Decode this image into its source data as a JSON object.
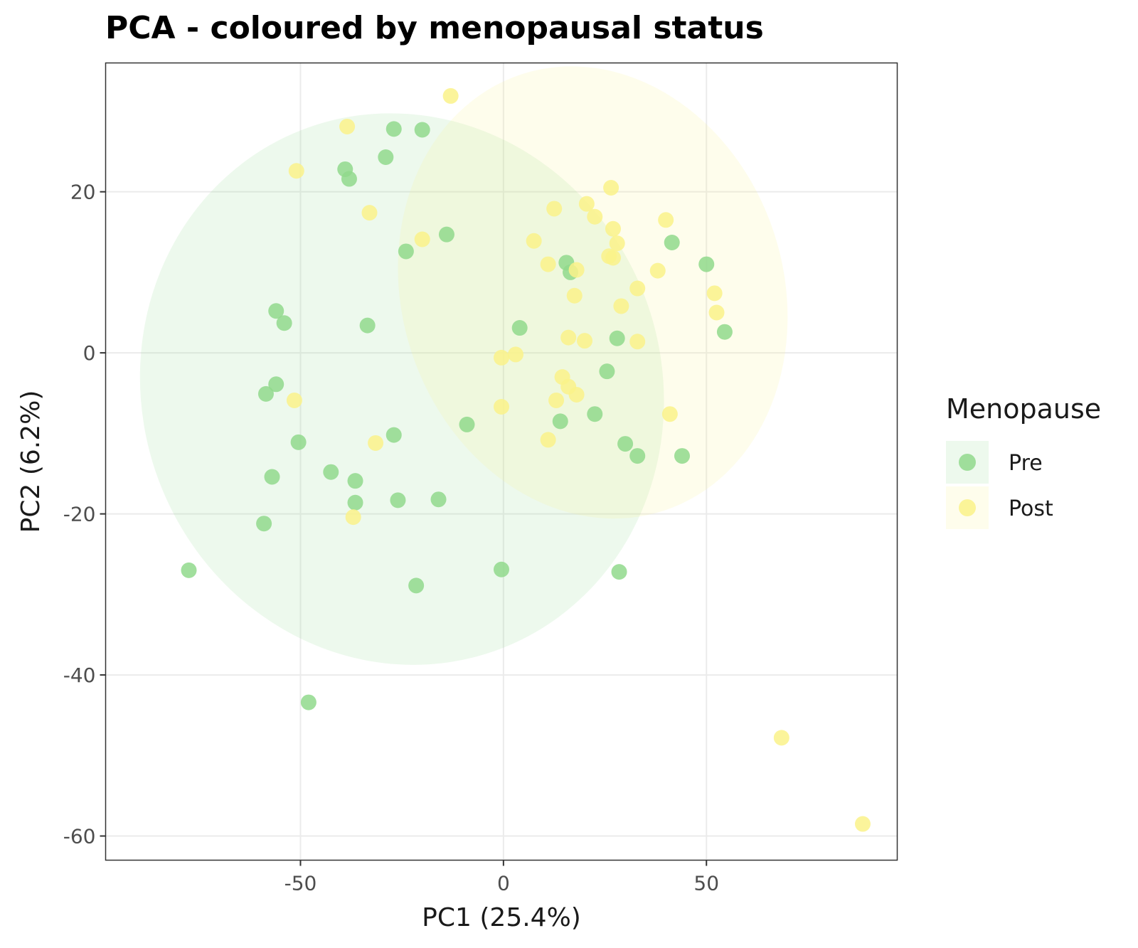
{
  "chart_data": {
    "type": "scatter",
    "title": "PCA - coloured by menopausal status",
    "xlabel": "PC1 (25.4%)",
    "ylabel": "PC2 (6.2%)",
    "xlim": [
      -98,
      97
    ],
    "ylim": [
      -63,
      36
    ],
    "x_ticks": [
      -50,
      0,
      50
    ],
    "x_tick_labels": [
      "-50",
      "0",
      "50"
    ],
    "y_ticks": [
      -60,
      -40,
      -20,
      0,
      20
    ],
    "y_tick_labels": [
      "-60",
      "-40",
      "-20",
      "0",
      "20"
    ],
    "grid": true,
    "legend": {
      "title": "Menopause",
      "position": "right"
    },
    "ellipses": [
      {
        "series": "Pre",
        "cx": -25,
        "cy": -4.5,
        "rx": 64,
        "ry": 34.5,
        "angle_deg": 20
      },
      {
        "series": "Post",
        "cx": 22,
        "cy": 7.5,
        "rx": 47,
        "ry": 28.5,
        "angle_deg": 18
      }
    ],
    "series": [
      {
        "name": "Pre",
        "color": "#90d98c",
        "points": [
          [
            -27,
            27.8
          ],
          [
            -20,
            27.7
          ],
          [
            -39,
            22.8
          ],
          [
            -38,
            21.6
          ],
          [
            -29,
            24.3
          ],
          [
            -14,
            14.7
          ],
          [
            -24,
            12.6
          ],
          [
            -56,
            5.2
          ],
          [
            -54,
            3.7
          ],
          [
            -33.5,
            3.4
          ],
          [
            -56,
            -3.9
          ],
          [
            -58.5,
            -5.1
          ],
          [
            -50.5,
            -11.1
          ],
          [
            -27,
            -10.2
          ],
          [
            -9,
            -8.9
          ],
          [
            -42.5,
            -14.8
          ],
          [
            -36.5,
            -15.9
          ],
          [
            -57,
            -15.4
          ],
          [
            -36.5,
            -18.6
          ],
          [
            -26,
            -18.3
          ],
          [
            -16,
            -18.2
          ],
          [
            -59,
            -21.2
          ],
          [
            -77.5,
            -27
          ],
          [
            -21.5,
            -28.9
          ],
          [
            -0.5,
            -26.9
          ],
          [
            -48,
            -43.4
          ],
          [
            4,
            3.1
          ],
          [
            15.5,
            11.2
          ],
          [
            16.5,
            10
          ],
          [
            28,
            1.8
          ],
          [
            25.5,
            -2.3
          ],
          [
            14,
            -8.5
          ],
          [
            22.5,
            -7.6
          ],
          [
            30,
            -11.3
          ],
          [
            33,
            -12.8
          ],
          [
            44,
            -12.8
          ],
          [
            41.5,
            13.7
          ],
          [
            50,
            11
          ],
          [
            54.5,
            2.6
          ],
          [
            28.5,
            -27.2
          ]
        ]
      },
      {
        "name": "Post",
        "color": "#faf28a",
        "points": [
          [
            -13,
            31.9
          ],
          [
            -38.5,
            28.1
          ],
          [
            -51,
            22.6
          ],
          [
            -33,
            17.4
          ],
          [
            -20,
            14.1
          ],
          [
            -51.5,
            -5.9
          ],
          [
            -31.5,
            -11.2
          ],
          [
            -37,
            -20.4
          ],
          [
            7.5,
            13.9
          ],
          [
            11,
            11
          ],
          [
            12.5,
            17.9
          ],
          [
            20.5,
            18.5
          ],
          [
            22.5,
            16.9
          ],
          [
            26.5,
            20.5
          ],
          [
            27,
            15.4
          ],
          [
            28,
            13.6
          ],
          [
            26,
            12
          ],
          [
            27,
            11.8
          ],
          [
            18,
            10.3
          ],
          [
            17.5,
            7.1
          ],
          [
            29,
            5.8
          ],
          [
            33,
            8
          ],
          [
            38,
            10.2
          ],
          [
            40,
            16.5
          ],
          [
            52,
            7.4
          ],
          [
            52.5,
            5
          ],
          [
            33,
            1.4
          ],
          [
            16,
            1.9
          ],
          [
            20,
            1.5
          ],
          [
            -0.5,
            -0.6
          ],
          [
            3,
            -0.2
          ],
          [
            14.5,
            -3
          ],
          [
            16,
            -4.2
          ],
          [
            18,
            -5.2
          ],
          [
            13,
            -5.9
          ],
          [
            -0.5,
            -6.7
          ],
          [
            11,
            -10.8
          ],
          [
            41,
            -7.6
          ],
          [
            68.5,
            -47.8
          ],
          [
            88.5,
            -58.5
          ]
        ]
      }
    ]
  }
}
